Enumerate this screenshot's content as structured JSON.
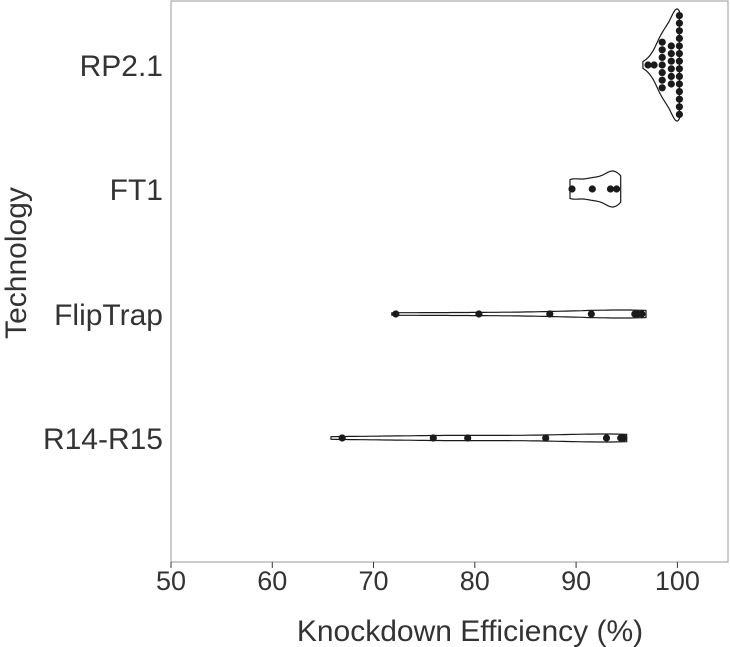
{
  "chart_data": {
    "type": "violin",
    "orientation": "horizontal",
    "title": "",
    "xlabel": "Knockdown Efficiency  (%)",
    "ylabel": "Technology",
    "xlim": [
      50,
      105
    ],
    "x_ticks": [
      "50",
      "60",
      "70",
      "80",
      "90",
      "100"
    ],
    "grid": false,
    "legend": "none",
    "categories": [
      "RP2.1",
      "FT1",
      "FlipTrap",
      "R14-R15"
    ],
    "series": [
      {
        "category": "RP2.1",
        "values": [
          97.1,
          97.7,
          98.5,
          98.5,
          98.5,
          98.5,
          98.5,
          98.5,
          98.5,
          99.4,
          99.4,
          99.4,
          99.4,
          99.4,
          99.4,
          100.2,
          100.2,
          100.2,
          100.2,
          100.2,
          100.2,
          100.2,
          100.2,
          100.2,
          100.2,
          100.2,
          100.2,
          100.2,
          100.2
        ],
        "violin_range": [
          96.6,
          100.2
        ]
      },
      {
        "category": "FT1",
        "values": [
          89.6,
          91.6,
          93.4,
          94.0
        ],
        "violin_range": [
          89.4,
          94.4
        ]
      },
      {
        "category": "FlipTrap",
        "values": [
          72.2,
          80.4,
          87.4,
          91.5,
          95.8,
          96.1,
          96.5
        ],
        "violin_range": [
          71.8,
          96.9
        ]
      },
      {
        "category": "R14-R15",
        "values": [
          66.9,
          75.9,
          79.3,
          87.0,
          93.0,
          94.4,
          94.7
        ],
        "violin_range": [
          65.8,
          95.0
        ]
      }
    ],
    "colors": {
      "points": "#1a1a1a",
      "violin_stroke": "#1a1a1a",
      "frame": "#999999"
    }
  }
}
